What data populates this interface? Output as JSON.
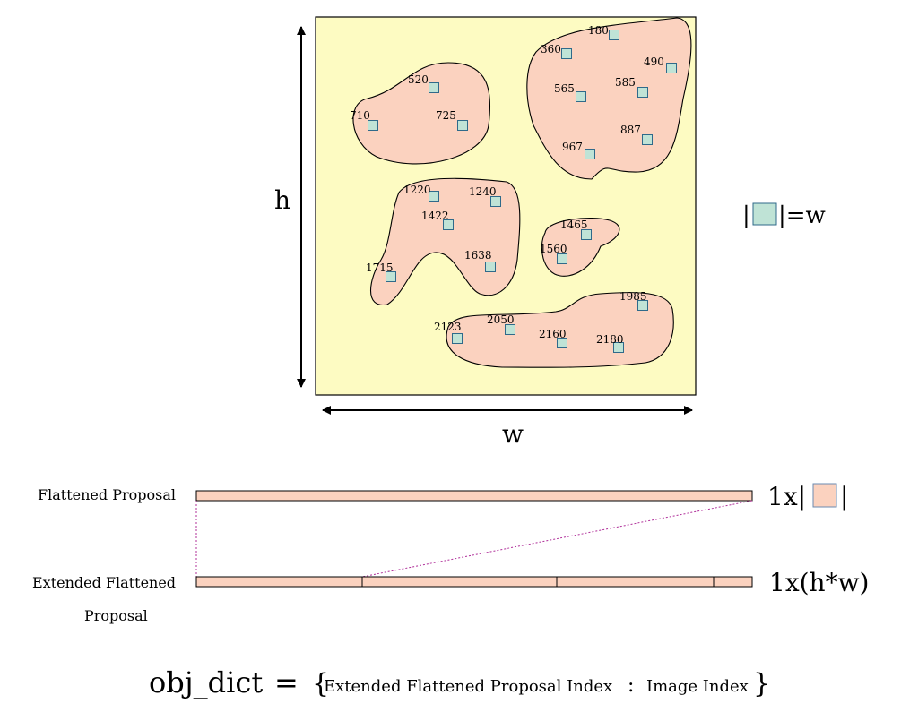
{
  "labels": {
    "h": "h",
    "w": "w",
    "w_legend_left": "|",
    "w_legend_right": "|=w",
    "flattened_proposal": "Flattened  Proposal",
    "extended_flattened_line1": "Extended  Flattened",
    "extended_flattened_line2": "Proposal",
    "dim_proposal_prefix": "1x|",
    "dim_proposal_suffix": "|",
    "dim_extended": "1x(h*w)"
  },
  "formula": {
    "lhs": "obj_dict",
    "equals": "=",
    "open_brace": "{",
    "key": "Extended  Flattened  Proposal  Index",
    "colon": ":",
    "value": "Image  Index",
    "close_brace": "}"
  },
  "points": [
    "180",
    "360",
    "490",
    "565",
    "585",
    "887",
    "967",
    "520",
    "710",
    "725",
    "1220",
    "1240",
    "1422",
    "1465",
    "1560",
    "1638",
    "1715",
    "1985",
    "2050",
    "2123",
    "2160",
    "2180"
  ],
  "colors": {
    "canvas": "#fdfbc2",
    "blob": "#fbd2bf",
    "cell": "#bfe3d6",
    "cell_stroke": "#2f6a8a",
    "connector": "#b0309a"
  }
}
